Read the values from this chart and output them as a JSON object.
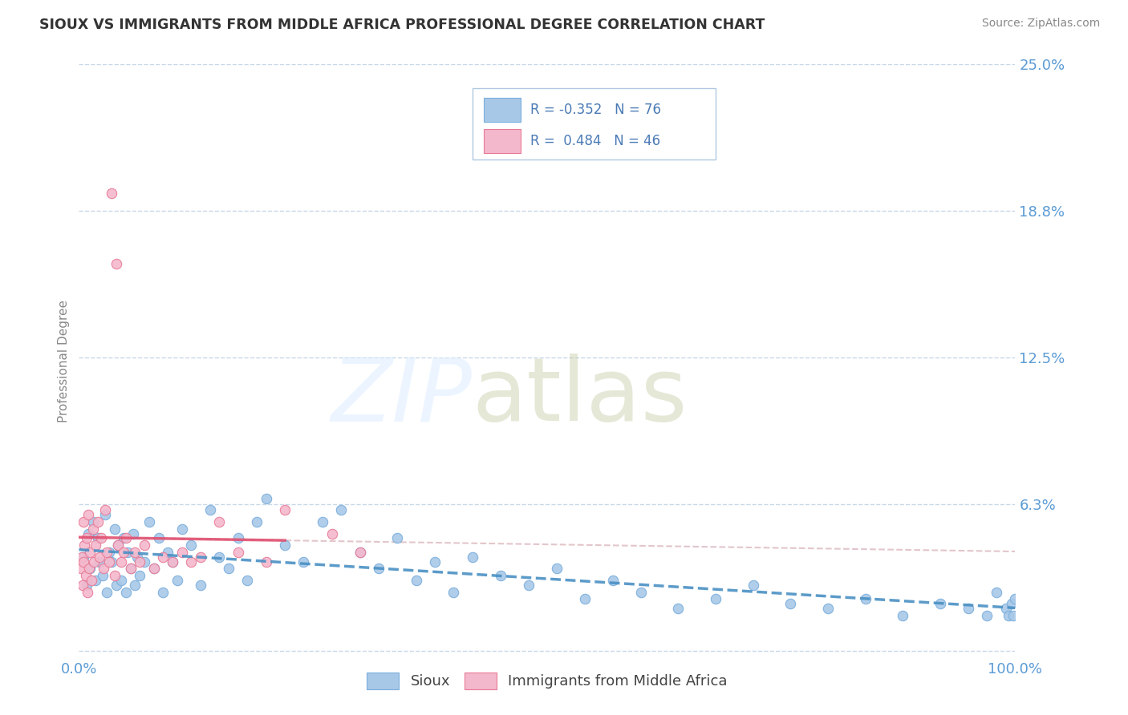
{
  "title": "SIOUX VS IMMIGRANTS FROM MIDDLE AFRICA PROFESSIONAL DEGREE CORRELATION CHART",
  "source": "Source: ZipAtlas.com",
  "ylabel": "Professional Degree",
  "xlim": [
    0.0,
    1.0
  ],
  "ylim": [
    -0.003,
    0.25
  ],
  "yticks": [
    0.0,
    0.0625,
    0.125,
    0.1875,
    0.25
  ],
  "ytick_labels": [
    "",
    "6.3%",
    "12.5%",
    "18.8%",
    "25.0%"
  ],
  "xticks": [
    0.0,
    1.0
  ],
  "xtick_labels": [
    "0.0%",
    "100.0%"
  ],
  "series1_name": "Sioux",
  "series1_color": "#a8c8e8",
  "series1_edge": "#7aaedc",
  "series1_R": -0.352,
  "series1_N": 76,
  "series2_name": "Immigrants from Middle Africa",
  "series2_color": "#f4b8cc",
  "series2_edge": "#e87a96",
  "series2_R": 0.484,
  "series2_N": 46,
  "background_color": "#ffffff",
  "grid_color": "#c8d8e8",
  "title_color": "#333333",
  "tick_label_color": "#5b9bd5",
  "sioux_x": [
    0.005,
    0.008,
    0.01,
    0.012,
    0.015,
    0.018,
    0.02,
    0.022,
    0.025,
    0.028,
    0.03,
    0.032,
    0.035,
    0.038,
    0.04,
    0.042,
    0.045,
    0.048,
    0.05,
    0.052,
    0.055,
    0.058,
    0.06,
    0.062,
    0.065,
    0.07,
    0.075,
    0.08,
    0.085,
    0.09,
    0.095,
    0.1,
    0.105,
    0.11,
    0.12,
    0.13,
    0.14,
    0.15,
    0.16,
    0.17,
    0.18,
    0.19,
    0.2,
    0.22,
    0.24,
    0.26,
    0.28,
    0.3,
    0.32,
    0.34,
    0.36,
    0.38,
    0.4,
    0.42,
    0.45,
    0.48,
    0.51,
    0.54,
    0.57,
    0.6,
    0.64,
    0.68,
    0.72,
    0.76,
    0.8,
    0.84,
    0.88,
    0.92,
    0.95,
    0.97,
    0.98,
    0.99,
    0.993,
    0.996,
    0.998,
    1.0
  ],
  "sioux_y": [
    0.04,
    0.028,
    0.05,
    0.035,
    0.055,
    0.03,
    0.048,
    0.038,
    0.032,
    0.058,
    0.025,
    0.042,
    0.038,
    0.052,
    0.028,
    0.045,
    0.03,
    0.048,
    0.025,
    0.042,
    0.035,
    0.05,
    0.028,
    0.04,
    0.032,
    0.038,
    0.055,
    0.035,
    0.048,
    0.025,
    0.042,
    0.038,
    0.03,
    0.052,
    0.045,
    0.028,
    0.06,
    0.04,
    0.035,
    0.048,
    0.03,
    0.055,
    0.065,
    0.045,
    0.038,
    0.055,
    0.06,
    0.042,
    0.035,
    0.048,
    0.03,
    0.038,
    0.025,
    0.04,
    0.032,
    0.028,
    0.035,
    0.022,
    0.03,
    0.025,
    0.018,
    0.022,
    0.028,
    0.02,
    0.018,
    0.022,
    0.015,
    0.02,
    0.018,
    0.015,
    0.025,
    0.018,
    0.015,
    0.02,
    0.015,
    0.022
  ],
  "immigrants_x": [
    0.002,
    0.003,
    0.004,
    0.005,
    0.005,
    0.006,
    0.007,
    0.008,
    0.009,
    0.01,
    0.011,
    0.012,
    0.013,
    0.015,
    0.016,
    0.018,
    0.02,
    0.022,
    0.024,
    0.026,
    0.028,
    0.03,
    0.032,
    0.035,
    0.038,
    0.04,
    0.042,
    0.045,
    0.048,
    0.05,
    0.055,
    0.06,
    0.065,
    0.07,
    0.08,
    0.09,
    0.1,
    0.11,
    0.12,
    0.13,
    0.15,
    0.17,
    0.2,
    0.22,
    0.27,
    0.3
  ],
  "immigrants_y": [
    0.035,
    0.04,
    0.028,
    0.055,
    0.038,
    0.045,
    0.032,
    0.048,
    0.025,
    0.058,
    0.035,
    0.042,
    0.03,
    0.052,
    0.038,
    0.045,
    0.055,
    0.04,
    0.048,
    0.035,
    0.06,
    0.042,
    0.038,
    0.195,
    0.032,
    0.165,
    0.045,
    0.038,
    0.042,
    0.048,
    0.035,
    0.042,
    0.038,
    0.045,
    0.035,
    0.04,
    0.038,
    0.042,
    0.038,
    0.04,
    0.055,
    0.042,
    0.038,
    0.06,
    0.05,
    0.042
  ]
}
